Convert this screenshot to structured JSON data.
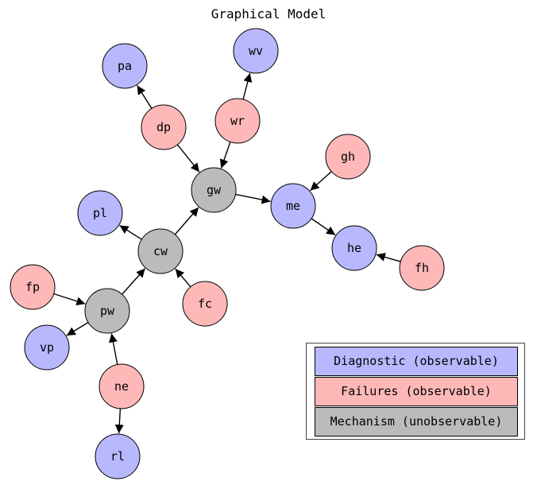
{
  "title": "Graphical Model",
  "colors": {
    "diagnostic": "#b8b8ff",
    "failure": "#ffb8b8",
    "mechanism": "#bbbbbb",
    "edge": "#000000"
  },
  "nodes": [
    {
      "id": "pa",
      "label": "pa",
      "category": "diagnostic"
    },
    {
      "id": "wv",
      "label": "wv",
      "category": "diagnostic"
    },
    {
      "id": "dp",
      "label": "dp",
      "category": "failure"
    },
    {
      "id": "wr",
      "label": "wr",
      "category": "failure"
    },
    {
      "id": "gh",
      "label": "gh",
      "category": "failure"
    },
    {
      "id": "gw",
      "label": "gw",
      "category": "mechanism"
    },
    {
      "id": "me",
      "label": "me",
      "category": "diagnostic"
    },
    {
      "id": "pl",
      "label": "pl",
      "category": "diagnostic"
    },
    {
      "id": "cw",
      "label": "cw",
      "category": "mechanism"
    },
    {
      "id": "he",
      "label": "he",
      "category": "diagnostic"
    },
    {
      "id": "fh",
      "label": "fh",
      "category": "failure"
    },
    {
      "id": "fp",
      "label": "fp",
      "category": "failure"
    },
    {
      "id": "fc",
      "label": "fc",
      "category": "failure"
    },
    {
      "id": "pw",
      "label": "pw",
      "category": "mechanism"
    },
    {
      "id": "vp",
      "label": "vp",
      "category": "diagnostic"
    },
    {
      "id": "ne",
      "label": "ne",
      "category": "failure"
    },
    {
      "id": "rl",
      "label": "rl",
      "category": "diagnostic"
    }
  ],
  "edges": [
    {
      "from": "dp",
      "to": "pa"
    },
    {
      "from": "dp",
      "to": "gw"
    },
    {
      "from": "wr",
      "to": "wv"
    },
    {
      "from": "wr",
      "to": "gw"
    },
    {
      "from": "gw",
      "to": "me"
    },
    {
      "from": "gh",
      "to": "me"
    },
    {
      "from": "me",
      "to": "he"
    },
    {
      "from": "fh",
      "to": "he"
    },
    {
      "from": "cw",
      "to": "gw"
    },
    {
      "from": "cw",
      "to": "pl"
    },
    {
      "from": "fc",
      "to": "cw"
    },
    {
      "from": "pw",
      "to": "cw"
    },
    {
      "from": "fp",
      "to": "pw"
    },
    {
      "from": "pw",
      "to": "vp"
    },
    {
      "from": "ne",
      "to": "pw"
    },
    {
      "from": "ne",
      "to": "rl"
    }
  ],
  "legend": [
    {
      "label": "Diagnostic (observable)",
      "category": "diagnostic"
    },
    {
      "label": "Failures (observable)",
      "category": "failure"
    },
    {
      "label": "Mechanism (unobservable)",
      "category": "mechanism"
    }
  ]
}
